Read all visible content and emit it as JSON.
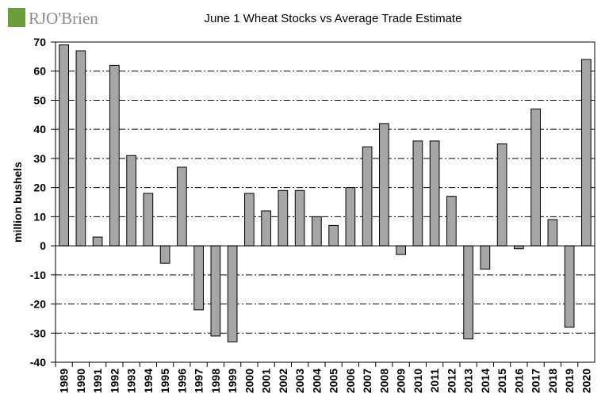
{
  "brand": {
    "logo_text": "RJO'Brien",
    "colors": {
      "green": "#6a9c3a",
      "gray": "#8a8a8a"
    }
  },
  "chart_data": {
    "type": "bar",
    "title": "June 1 Wheat Stocks vs Average Trade Estimate",
    "xlabel": "",
    "ylabel": "million bushels",
    "ylim": [
      -40,
      70
    ],
    "yticks": [
      70,
      60,
      50,
      40,
      30,
      20,
      10,
      0,
      -10,
      -20,
      -30,
      -40
    ],
    "grid": "horizontal dash-dot",
    "bar_color": "#a6a6a6",
    "categories": [
      "1989",
      "1990",
      "1991",
      "1992",
      "1993",
      "1994",
      "1995",
      "1996",
      "1997",
      "1998",
      "1999",
      "2000",
      "2001",
      "2002",
      "2003",
      "2004",
      "2005",
      "2006",
      "2007",
      "2008",
      "2009",
      "2010",
      "2011",
      "2012",
      "2013",
      "2014",
      "2015",
      "2016",
      "2017",
      "2018",
      "2019",
      "2020"
    ],
    "values": [
      69,
      67,
      3,
      62,
      31,
      18,
      -6,
      27,
      -22,
      -31,
      -33,
      18,
      12,
      19,
      19,
      10,
      7,
      20,
      34,
      42,
      -3,
      36,
      36,
      17,
      -32,
      -8,
      35,
      -1,
      47,
      9,
      -28,
      64
    ]
  }
}
